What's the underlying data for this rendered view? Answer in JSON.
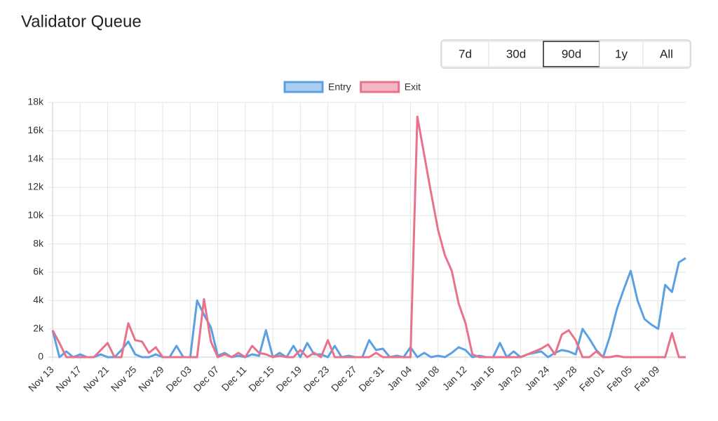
{
  "title": "Validator Queue",
  "range_buttons": {
    "options": [
      "7d",
      "30d",
      "90d",
      "1y",
      "All"
    ],
    "selected": "90d"
  },
  "chart_data": {
    "type": "line",
    "categories": [
      "Nov 13",
      null,
      null,
      null,
      "Nov 17",
      null,
      null,
      null,
      "Nov 21",
      null,
      null,
      null,
      "Nov 25",
      null,
      null,
      null,
      "Nov 29",
      null,
      null,
      null,
      "Dec 03",
      null,
      null,
      null,
      "Dec 07",
      null,
      null,
      null,
      "Dec 11",
      null,
      null,
      null,
      "Dec 15",
      null,
      null,
      null,
      "Dec 19",
      null,
      null,
      null,
      "Dec 23",
      null,
      null,
      null,
      "Dec 27",
      null,
      null,
      null,
      "Dec 31",
      null,
      null,
      null,
      "Jan 04",
      null,
      null,
      null,
      "Jan 08",
      null,
      null,
      null,
      "Jan 12",
      null,
      null,
      null,
      "Jan 16",
      null,
      null,
      null,
      "Jan 20",
      null,
      null,
      null,
      "Jan 24",
      null,
      null,
      null,
      "Jan 28",
      null,
      null,
      null,
      "Feb 01",
      null,
      null,
      null,
      "Feb 05",
      null,
      null,
      null,
      "Feb 09",
      null,
      null,
      null,
      null
    ],
    "series": [
      {
        "name": "Entry",
        "color": "#5aa0e3",
        "values": [
          1900,
          0,
          400,
          0,
          200,
          0,
          0,
          200,
          0,
          0,
          500,
          1100,
          200,
          0,
          0,
          200,
          0,
          0,
          800,
          0,
          0,
          4000,
          3000,
          2100,
          100,
          300,
          0,
          100,
          0,
          200,
          100,
          1900,
          0,
          300,
          0,
          800,
          0,
          1000,
          200,
          200,
          0,
          800,
          0,
          100,
          0,
          0,
          1200,
          500,
          600,
          0,
          100,
          0,
          700,
          0,
          300,
          0,
          100,
          0,
          300,
          700,
          500,
          0,
          100,
          0,
          0,
          1000,
          0,
          400,
          0,
          200,
          300,
          400,
          0,
          300,
          500,
          400,
          200,
          2000,
          1300,
          500,
          0,
          1500,
          3400,
          4800,
          6100,
          4000,
          2700,
          2300,
          2000,
          5100,
          4600,
          6700,
          7000
        ]
      },
      {
        "name": "Exit",
        "color": "#e9728b",
        "values": [
          1900,
          1000,
          0,
          0,
          0,
          0,
          0,
          500,
          1000,
          0,
          0,
          2400,
          1200,
          1100,
          300,
          700,
          0,
          0,
          0,
          0,
          0,
          0,
          4100,
          1100,
          0,
          200,
          0,
          300,
          0,
          800,
          300,
          200,
          0,
          100,
          0,
          0,
          500,
          0,
          300,
          0,
          1200,
          0,
          0,
          0,
          0,
          0,
          0,
          300,
          0,
          0,
          0,
          0,
          0,
          17000,
          14300,
          11600,
          9000,
          7200,
          6100,
          3800,
          2400,
          200,
          0,
          0,
          0,
          0,
          0,
          0,
          0,
          200,
          400,
          600,
          900,
          200,
          1600,
          1900,
          1200,
          0,
          0,
          400,
          0,
          0,
          100,
          0,
          0,
          0,
          0,
          0,
          0,
          0,
          1700,
          0,
          0
        ]
      }
    ],
    "ylim": [
      0,
      18000
    ],
    "yticks": [
      0,
      {
        "value": 2000,
        "label": "2k"
      },
      {
        "value": 4000,
        "label": "4k"
      },
      {
        "value": 6000,
        "label": "6k"
      },
      {
        "value": 8000,
        "label": "8k"
      },
      {
        "value": 10000,
        "label": "10k"
      },
      {
        "value": 12000,
        "label": "12k"
      },
      {
        "value": 14000,
        "label": "14k"
      },
      {
        "value": 16000,
        "label": "16k"
      },
      {
        "value": 18000,
        "label": "18k"
      }
    ],
    "grid": true,
    "legend": "top"
  }
}
